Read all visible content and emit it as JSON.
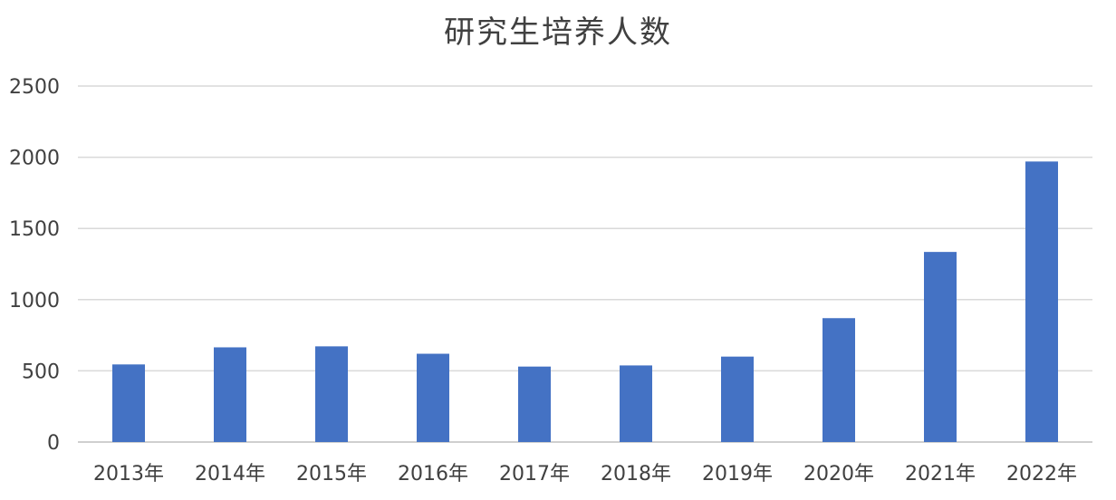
{
  "chart_data": {
    "type": "bar",
    "title": "研究生培养人数",
    "categories": [
      "2013年",
      "2014年",
      "2015年",
      "2016年",
      "2017年",
      "2018年",
      "2019年",
      "2020年",
      "2021年",
      "2022年"
    ],
    "values": [
      545,
      665,
      672,
      620,
      530,
      538,
      600,
      870,
      1335,
      1970
    ],
    "ylim": [
      0,
      2500
    ],
    "yticks": [
      "0",
      "500",
      "1000",
      "1500",
      "2000",
      "2500"
    ],
    "grid": true,
    "xlabel": "",
    "ylabel": "",
    "bar_color": "#4472C4"
  }
}
